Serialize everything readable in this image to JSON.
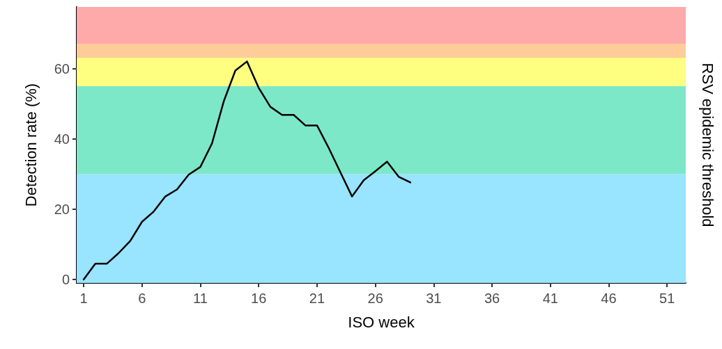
{
  "chart_data": {
    "type": "line",
    "xlabel": "ISO week",
    "ylabel": "Detection rate (%)",
    "y2label": "RSV epidemic threshold",
    "x": [
      1,
      2,
      3,
      4,
      5,
      6,
      7,
      8,
      9,
      10,
      11,
      12,
      13,
      14,
      15,
      16,
      17,
      18,
      19,
      20,
      21,
      22,
      23,
      24,
      25,
      26,
      27,
      28,
      29
    ],
    "series": [
      {
        "color": "#000000",
        "values": [
          0,
          4.5,
          4.5,
          7.5,
          11,
          16.4,
          19.3,
          23.6,
          25.6,
          29.8,
          32,
          38.7,
          50.6,
          59.4,
          62,
          54.5,
          49.1,
          46.8,
          46.8,
          43.8,
          43.8,
          37.4,
          30.5,
          23.6,
          28.2,
          30.8,
          33.5,
          29.2,
          27.6
        ]
      }
    ],
    "xlim": [
      0.4,
      52.6
    ],
    "xticks": [
      1,
      6,
      11,
      16,
      21,
      26,
      31,
      36,
      41,
      46,
      51
    ],
    "ylim": [
      -1,
      77.5
    ],
    "yticks": [
      0,
      20,
      40,
      60
    ],
    "bands": [
      {
        "axis": "y",
        "from": -1,
        "to": 30,
        "color": "#99e4fe"
      },
      {
        "axis": "y",
        "from": 30,
        "to": 55,
        "color": "#7de8c8"
      },
      {
        "axis": "y",
        "from": 55,
        "to": 63,
        "color": "#fefe80"
      },
      {
        "axis": "y",
        "from": 63,
        "to": 67,
        "color": "#fecc99"
      },
      {
        "axis": "y",
        "from": 67,
        "to": 77.5,
        "color": "#feaaaa"
      }
    ],
    "grid": false,
    "marker": "none",
    "line_style": "solid"
  }
}
